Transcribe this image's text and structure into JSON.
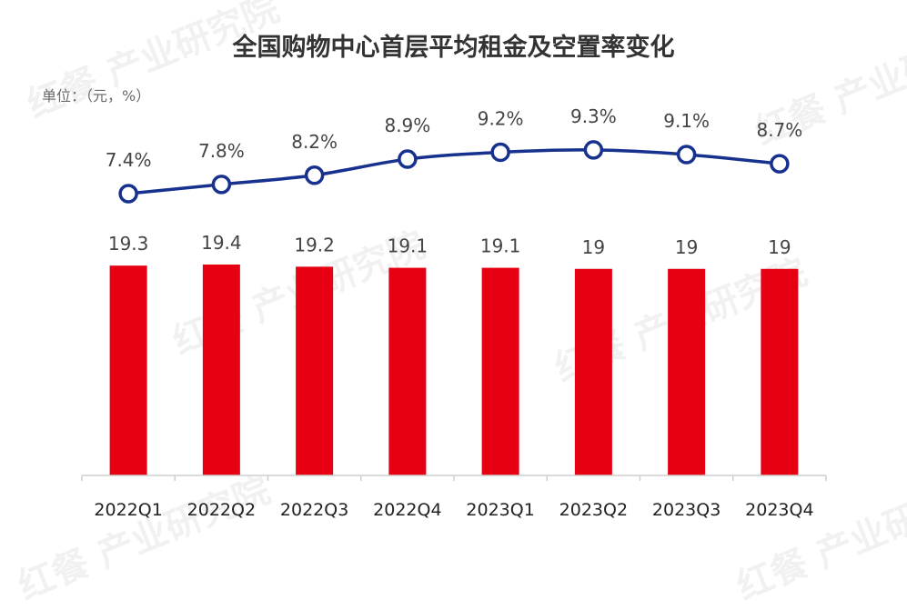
{
  "title": "全国购物中心首层平均租金及空置率变化",
  "unit_label": "单位：（元，%）",
  "watermark": "红餐 产业研究院",
  "colors": {
    "bar": "#e60012",
    "line": "#17318e",
    "text": "#444444",
    "axis": "#cfcfcf"
  },
  "chart_data": {
    "type": "bar",
    "categories": [
      "2022Q1",
      "2022Q2",
      "2022Q3",
      "2022Q4",
      "2023Q1",
      "2023Q2",
      "2023Q3",
      "2023Q4"
    ],
    "series": [
      {
        "type": "bar",
        "values": [
          19.3,
          19.4,
          19.2,
          19.1,
          19.1,
          19,
          19,
          19
        ],
        "labels": [
          "19.3",
          "19.4",
          "19.2",
          "19.1",
          "19.1",
          "19",
          "19",
          "19"
        ]
      },
      {
        "type": "line",
        "values": [
          7.4,
          7.8,
          8.2,
          8.9,
          9.2,
          9.3,
          9.1,
          8.7
        ],
        "labels": [
          "7.4%",
          "7.8%",
          "8.2%",
          "8.9%",
          "9.2%",
          "9.3%",
          "9.1%",
          "8.7%"
        ]
      }
    ],
    "legend": "none",
    "grid": false
  }
}
